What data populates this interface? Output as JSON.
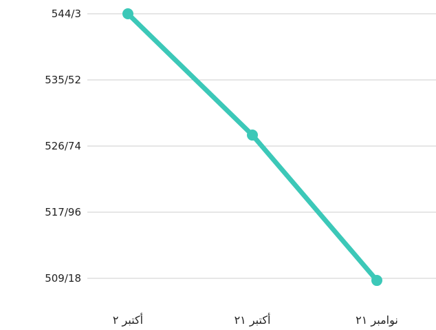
{
  "chart_data": {
    "type": "line",
    "title": "",
    "xlabel": "",
    "ylabel": "",
    "categories": [
      "أكتبر ٢",
      "أكتبر ٢١",
      "نوامبر ٢١"
    ],
    "series": [
      {
        "values": [
          544.3,
          528.2,
          508.9
        ],
        "color": "#3cc8b8"
      }
    ],
    "y_ticks": [
      509.18,
      517.96,
      526.74,
      535.52,
      544.3
    ],
    "y_tick_labels": [
      "509/18",
      "517/96",
      "526/74",
      "535/52",
      "544/3"
    ],
    "ylim": [
      509.18,
      544.3
    ],
    "grid": true,
    "grid_color": "#cccccc",
    "legend": "none"
  }
}
